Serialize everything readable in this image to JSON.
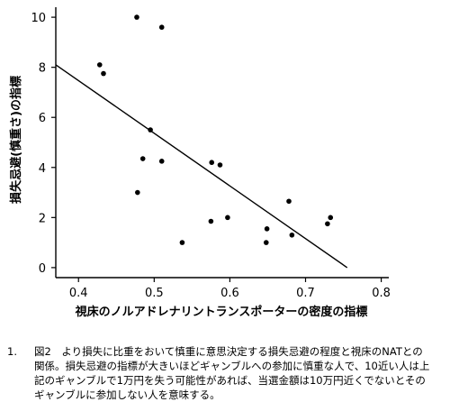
{
  "chart_data": {
    "type": "scatter",
    "xlabel": "視床のノルアドレナリントランスポーターの密度の指標",
    "ylabel": "損失忌避(慎重さ)の指標",
    "xlim": [
      0.37,
      0.81
    ],
    "ylim": [
      -0.4,
      10.4
    ],
    "xticks": [
      "0.4",
      "0.5",
      "0.6",
      "0.7",
      "0.8"
    ],
    "yticks": [
      "0",
      "2",
      "4",
      "6",
      "8",
      "10"
    ],
    "points": [
      {
        "x": 0.428,
        "y": 8.1
      },
      {
        "x": 0.433,
        "y": 7.75
      },
      {
        "x": 0.477,
        "y": 10.0
      },
      {
        "x": 0.478,
        "y": 3.0
      },
      {
        "x": 0.485,
        "y": 4.35
      },
      {
        "x": 0.495,
        "y": 5.5
      },
      {
        "x": 0.51,
        "y": 9.6
      },
      {
        "x": 0.51,
        "y": 4.25
      },
      {
        "x": 0.537,
        "y": 1.0
      },
      {
        "x": 0.575,
        "y": 1.85
      },
      {
        "x": 0.576,
        "y": 4.2
      },
      {
        "x": 0.587,
        "y": 4.1
      },
      {
        "x": 0.597,
        "y": 2.0
      },
      {
        "x": 0.648,
        "y": 1.0
      },
      {
        "x": 0.649,
        "y": 1.55
      },
      {
        "x": 0.678,
        "y": 2.65
      },
      {
        "x": 0.682,
        "y": 1.3
      },
      {
        "x": 0.729,
        "y": 1.75
      },
      {
        "x": 0.733,
        "y": 2.0
      }
    ],
    "regression_line": {
      "x": [
        0.37,
        0.755
      ],
      "y": [
        8.1,
        0.0
      ]
    },
    "grid": false
  },
  "caption": {
    "number": "1.",
    "lines": [
      "図2　より損失に比重をおいて慎重に意思決定する損失忌避の程度と視床のNATとの",
      "関係。損失忌避の指標が大きいほどギャンブルへの参加に慎重な人で、10近い人は上",
      "記のギャンブルで1万円を失う可能性があれば、当選金額は10万円近くでないとその",
      "ギャンブルに参加しない人を意味する。"
    ]
  }
}
